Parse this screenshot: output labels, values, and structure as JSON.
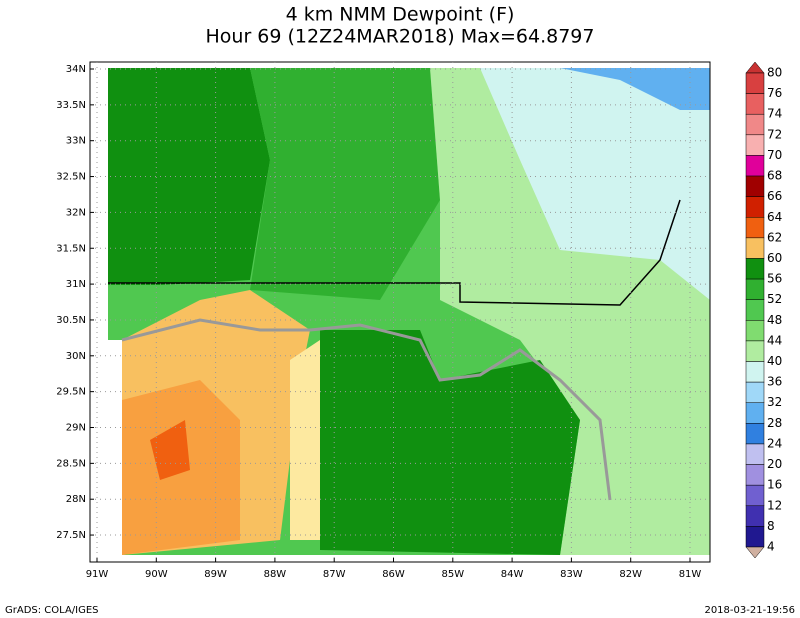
{
  "map": {
    "title": "4 km NMM Dewpoint (F)",
    "subtitle": "Hour 69 (12Z24MAR2018) Max=64.8797",
    "lat_ticks": [
      {
        "value": 34,
        "label": "34N"
      },
      {
        "value": 33.5,
        "label": "33.5N"
      },
      {
        "value": 33,
        "label": "33N"
      },
      {
        "value": 32.5,
        "label": "32.5N"
      },
      {
        "value": 32,
        "label": "32N"
      },
      {
        "value": 31.5,
        "label": "31.5N"
      },
      {
        "value": 31,
        "label": "31N"
      },
      {
        "value": 30.5,
        "label": "30.5N"
      },
      {
        "value": 30,
        "label": "30N"
      },
      {
        "value": 29.5,
        "label": "29.5N"
      },
      {
        "value": 29,
        "label": "29N"
      },
      {
        "value": 28.5,
        "label": "28.5N"
      },
      {
        "value": 28,
        "label": "28N"
      },
      {
        "value": 27.5,
        "label": "27.5N"
      }
    ],
    "lon_ticks": [
      {
        "value": -91,
        "label": "91W"
      },
      {
        "value": -90,
        "label": "90W"
      },
      {
        "value": -89,
        "label": "89W"
      },
      {
        "value": -88,
        "label": "88W"
      },
      {
        "value": -87,
        "label": "87W"
      },
      {
        "value": -86,
        "label": "86W"
      },
      {
        "value": -85,
        "label": "85W"
      },
      {
        "value": -84,
        "label": "84W"
      },
      {
        "value": -83,
        "label": "83W"
      },
      {
        "value": -82,
        "label": "82W"
      },
      {
        "value": -81,
        "label": "81W"
      }
    ],
    "colorbar": {
      "levels": [
        80,
        76,
        74,
        72,
        70,
        68,
        66,
        64,
        62,
        60,
        56,
        52,
        48,
        44,
        40,
        36,
        32,
        28,
        24,
        20,
        16,
        12,
        8,
        4
      ],
      "colors": [
        "#c83232",
        "#d84040",
        "#e86060",
        "#f08888",
        "#f8b0b0",
        "#e0009a",
        "#a00000",
        "#d02000",
        "#f06010",
        "#f8c060",
        "#109010",
        "#30b030",
        "#50c850",
        "#80dc70",
        "#b0eca0",
        "#d0f4f0",
        "#a0d8f8",
        "#60b0f0",
        "#3080e0",
        "#c0c0f0",
        "#a090e0",
        "#7060d0",
        "#4030b0",
        "#201890",
        "#d0b0a0"
      ]
    },
    "footer_left": "GrADS: COLA/IGES",
    "footer_right": "2018-03-21-19:56"
  }
}
